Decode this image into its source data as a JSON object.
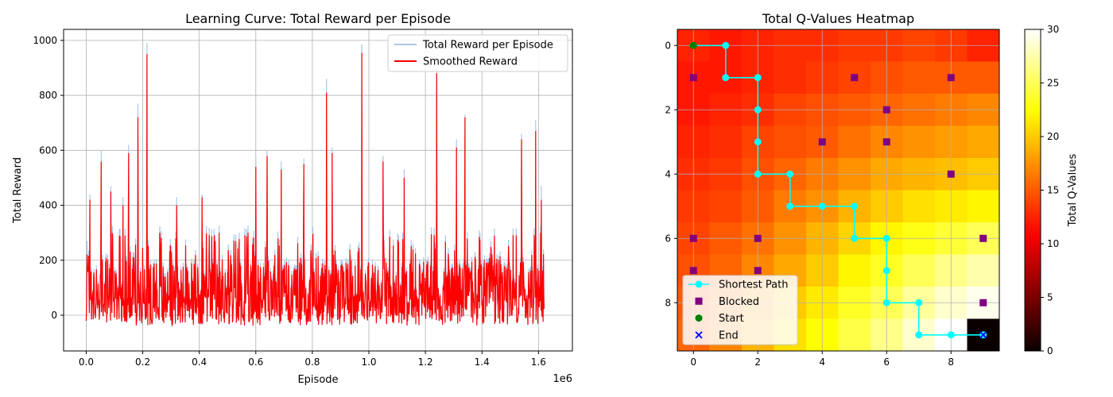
{
  "chart_data": [
    {
      "type": "line",
      "title": "Learning Curve: Total Reward per Episode",
      "xlabel": "Episode",
      "ylabel": "Total Reward",
      "x_offset_label": "1e6",
      "xlim": [
        -0.08,
        1.72
      ],
      "ylim": [
        -130,
        1040
      ],
      "xticks": [
        0.0,
        0.2,
        0.4,
        0.6,
        0.8,
        1.0,
        1.2,
        1.4,
        1.6
      ],
      "xtick_labels": [
        "0.0",
        "0.2",
        "0.4",
        "0.6",
        "0.8",
        "1.0",
        "1.2",
        "1.4",
        "1.6"
      ],
      "yticks": [
        0,
        200,
        400,
        600,
        800,
        1000
      ],
      "ytick_labels": [
        "0",
        "200",
        "400",
        "600",
        "800",
        "1000"
      ],
      "grid": true,
      "legend_position": "top-right",
      "series": [
        {
          "name": "Total Reward per Episode",
          "color": "#aec7e8",
          "peaks": [
            [
              0.003,
              270
            ],
            [
              0.013,
              440
            ],
            [
              0.053,
              600
            ],
            [
              0.087,
              470
            ],
            [
              0.13,
              430
            ],
            [
              0.15,
              620
            ],
            [
              0.183,
              770
            ],
            [
              0.215,
              990
            ],
            [
              0.26,
              320
            ],
            [
              0.32,
              430
            ],
            [
              0.41,
              440
            ],
            [
              0.6,
              580
            ],
            [
              0.64,
              600
            ],
            [
              0.69,
              560
            ],
            [
              0.77,
              570
            ],
            [
              0.85,
              860
            ],
            [
              0.87,
              610
            ],
            [
              0.975,
              985
            ],
            [
              1.05,
              580
            ],
            [
              1.125,
              530
            ],
            [
              1.24,
              900
            ],
            [
              1.31,
              640
            ],
            [
              1.34,
              730
            ],
            [
              1.54,
              660
            ],
            [
              1.59,
              710
            ],
            [
              1.61,
              470
            ]
          ]
        },
        {
          "name": "Smoothed Reward",
          "color": "#ff0000",
          "peaks": [
            [
              0.003,
              220
            ],
            [
              0.013,
              420
            ],
            [
              0.053,
              560
            ],
            [
              0.087,
              450
            ],
            [
              0.13,
              400
            ],
            [
              0.15,
              590
            ],
            [
              0.183,
              720
            ],
            [
              0.215,
              950
            ],
            [
              0.26,
              300
            ],
            [
              0.32,
              400
            ],
            [
              0.41,
              430
            ],
            [
              0.6,
              540
            ],
            [
              0.64,
              580
            ],
            [
              0.69,
              530
            ],
            [
              0.77,
              550
            ],
            [
              0.85,
              810
            ],
            [
              0.87,
              590
            ],
            [
              0.975,
              955
            ],
            [
              1.05,
              560
            ],
            [
              1.125,
              500
            ],
            [
              1.24,
              880
            ],
            [
              1.31,
              610
            ],
            [
              1.34,
              720
            ],
            [
              1.54,
              640
            ],
            [
              1.59,
              670
            ],
            [
              1.61,
              420
            ]
          ]
        }
      ],
      "episodes_max": 1.62
    },
    {
      "type": "heatmap",
      "title": "Total Q-Values Heatmap",
      "colorbar_label": "Total Q-Values",
      "colormap": "hot",
      "vmin": 0,
      "vmax": 30,
      "colorbar_ticks": [
        0,
        5,
        10,
        15,
        20,
        25,
        30
      ],
      "xticks": [
        0,
        2,
        4,
        6,
        8
      ],
      "yticks": [
        0,
        2,
        4,
        6,
        8
      ],
      "xtick_labels": [
        "0",
        "2",
        "4",
        "6",
        "8"
      ],
      "ytick_labels": [
        "0",
        "2",
        "4",
        "6",
        "8"
      ],
      "grid": true,
      "legend_position": "bottom-left",
      "matrix": [
        [
          12.5,
          12.0,
          12.5,
          13.0,
          13.0,
          13.5,
          13.5,
          14.0,
          13.5,
          12.5
        ],
        [
          12.0,
          12.0,
          12.5,
          13.0,
          13.5,
          14.0,
          14.5,
          15.0,
          15.0,
          15.0
        ],
        [
          12.0,
          12.5,
          13.0,
          14.0,
          14.5,
          15.0,
          15.5,
          16.0,
          16.5,
          17.0
        ],
        [
          12.5,
          13.0,
          14.0,
          14.5,
          15.0,
          16.0,
          17.0,
          17.5,
          18.0,
          18.5
        ],
        [
          13.0,
          13.5,
          14.5,
          15.5,
          16.5,
          17.5,
          18.5,
          19.0,
          19.5,
          20.0
        ],
        [
          13.5,
          14.0,
          15.0,
          16.5,
          17.5,
          19.0,
          20.0,
          21.0,
          21.5,
          22.0
        ],
        [
          14.0,
          15.0,
          16.0,
          17.5,
          19.0,
          20.5,
          22.0,
          23.0,
          24.0,
          25.0
        ],
        [
          14.5,
          15.5,
          17.0,
          18.5,
          20.0,
          22.0,
          23.5,
          25.0,
          26.5,
          27.5
        ],
        [
          15.0,
          16.5,
          18.0,
          20.0,
          21.5,
          23.5,
          25.0,
          27.0,
          28.5,
          29.5
        ],
        [
          15.5,
          17.0,
          19.0,
          21.0,
          22.5,
          24.5,
          26.5,
          28.5,
          30.0,
          0.0
        ]
      ],
      "legend": [
        {
          "label": "Shortest Path",
          "marker": "line-circle",
          "color": "#00ffff"
        },
        {
          "label": "Blocked",
          "marker": "square",
          "color": "#800080"
        },
        {
          "label": "Start",
          "marker": "circle",
          "color": "#008000"
        },
        {
          "label": "End",
          "marker": "x",
          "color": "#0000ff"
        }
      ],
      "shortest_path": [
        [
          0,
          0
        ],
        [
          1,
          0
        ],
        [
          1,
          1
        ],
        [
          2,
          1
        ],
        [
          2,
          2
        ],
        [
          2,
          3
        ],
        [
          2,
          4
        ],
        [
          3,
          4
        ],
        [
          3,
          5
        ],
        [
          4,
          5
        ],
        [
          5,
          5
        ],
        [
          5,
          6
        ],
        [
          6,
          6
        ],
        [
          6,
          7
        ],
        [
          6,
          8
        ],
        [
          7,
          8
        ],
        [
          7,
          9
        ],
        [
          8,
          9
        ],
        [
          9,
          9
        ]
      ],
      "blocked": [
        [
          0,
          1
        ],
        [
          5,
          1
        ],
        [
          8,
          1
        ],
        [
          6,
          2
        ],
        [
          4,
          3
        ],
        [
          6,
          3
        ],
        [
          8,
          4
        ],
        [
          0,
          6
        ],
        [
          2,
          6
        ],
        [
          9,
          6
        ],
        [
          0,
          7
        ],
        [
          2,
          7
        ],
        [
          9,
          8
        ]
      ],
      "start": [
        0,
        0
      ],
      "end": [
        9,
        9
      ]
    }
  ]
}
